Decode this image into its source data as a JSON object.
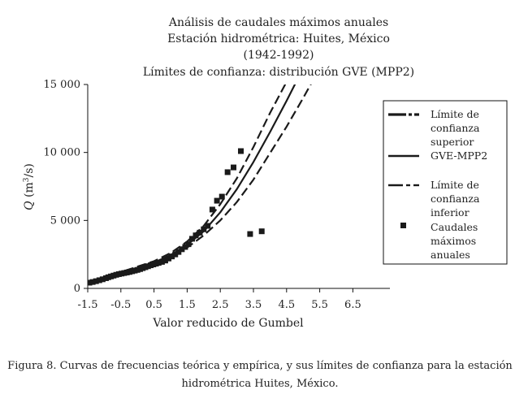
{
  "chart_data": {
    "type": "line",
    "title": [
      "Análisis de caudales máximos anuales",
      "Estación hidrométrica: Huites, México",
      "(1942-1992)",
      "Límites de confianza: distribución GVE (MPP2)"
    ],
    "xlabel": "Valor reducido de Gumbel",
    "ylabel": {
      "prefix": "Q",
      "unit": " (m",
      "sup": "3",
      "suffix": "/s)"
    },
    "xlim": [
      -1.5,
      7.0
    ],
    "ylim": [
      0,
      15000
    ],
    "x_ticks": [
      -1.5,
      -0.5,
      0.5,
      1.5,
      2.5,
      3.5,
      4.5,
      5.5,
      6.5
    ],
    "x_tick_labels": [
      "-1.5",
      "-0.5",
      "0.5",
      "1.5",
      "2.5",
      "3.5",
      "4.5",
      "5.5",
      "6.5"
    ],
    "y_ticks": [
      0,
      5000,
      10000,
      15000
    ],
    "y_tick_labels": [
      "0",
      "5 000",
      "10 000",
      "15 000"
    ],
    "legend": [
      {
        "text": [
          "Límite de",
          "confianza",
          "superior"
        ],
        "style": "long-dash-dot"
      },
      {
        "text": [
          "GVE-MPP2"
        ],
        "style": "solid"
      },
      {
        "text": [
          "Límite de",
          "confianza",
          "inferior"
        ],
        "style": "dash-dot"
      },
      {
        "text": [
          "Caudales",
          "máximos",
          "anuales"
        ],
        "style": "square-marker"
      }
    ],
    "legend_position": "right",
    "series": [
      {
        "name": "Límite de confianza superior",
        "style": "dash",
        "x": [
          -1.5,
          -1.0,
          -0.5,
          0.0,
          0.5,
          1.0,
          1.5,
          2.0,
          2.5,
          3.0,
          3.5,
          4.0,
          4.5,
          4.8
        ],
        "y": [
          420,
          800,
          1200,
          1600,
          2000,
          2600,
          3450,
          4600,
          6200,
          8100,
          10400,
          12900,
          15200,
          16400
        ]
      },
      {
        "name": "GVE-MPP2",
        "style": "solid",
        "x": [
          -1.5,
          -1.0,
          -0.5,
          0.0,
          0.5,
          1.0,
          1.5,
          2.0,
          2.5,
          3.0,
          3.5,
          4.0,
          4.5,
          5.0
        ],
        "y": [
          400,
          760,
          1130,
          1520,
          1900,
          2450,
          3200,
          4200,
          5600,
          7300,
          9300,
          11500,
          13800,
          16200
        ]
      },
      {
        "name": "Límite de confianza inferior",
        "style": "dash",
        "x": [
          -1.5,
          -1.0,
          -0.5,
          0.0,
          0.5,
          1.0,
          1.5,
          2.0,
          2.5,
          3.0,
          3.5,
          4.0,
          4.5,
          5.0,
          5.5
        ],
        "y": [
          380,
          720,
          1080,
          1450,
          1820,
          2350,
          3000,
          3900,
          5000,
          6350,
          8000,
          9950,
          11900,
          14000,
          16200
        ]
      },
      {
        "name": "Caudales máximos anuales",
        "style": "square",
        "x": [
          -1.45,
          -1.35,
          -1.25,
          -1.15,
          -1.05,
          -0.95,
          -0.88,
          -0.8,
          -0.72,
          -0.64,
          -0.56,
          -0.48,
          -0.4,
          -0.32,
          -0.24,
          -0.16,
          -0.08,
          0.0,
          0.08,
          0.16,
          0.24,
          0.32,
          0.4,
          0.48,
          0.56,
          0.64,
          0.74,
          0.84,
          0.94,
          1.04,
          1.14,
          1.24,
          1.34,
          1.44,
          1.54,
          1.65,
          1.76,
          1.88,
          2.0,
          2.12,
          2.26,
          2.4,
          2.55,
          2.72,
          2.9,
          3.12,
          3.4,
          3.75
        ],
        "y": [
          420,
          470,
          530,
          600,
          670,
          750,
          820,
          880,
          940,
          1000,
          1050,
          1090,
          1130,
          1170,
          1210,
          1260,
          1310,
          1360,
          1420,
          1490,
          1560,
          1630,
          1700,
          1760,
          1820,
          1880,
          1950,
          2050,
          2200,
          2350,
          2500,
          2680,
          2880,
          3050,
          3250,
          3650,
          3900,
          4100,
          4350,
          4600,
          5800,
          6450,
          6750,
          8550,
          8900,
          10100,
          4000,
          4200
        ]
      }
    ]
  },
  "caption": [
    "Figura 8. Curvas de frecuencias teórica y empírica, y sus límites de confianza para la estación",
    "hidrométrica Huites, México."
  ]
}
